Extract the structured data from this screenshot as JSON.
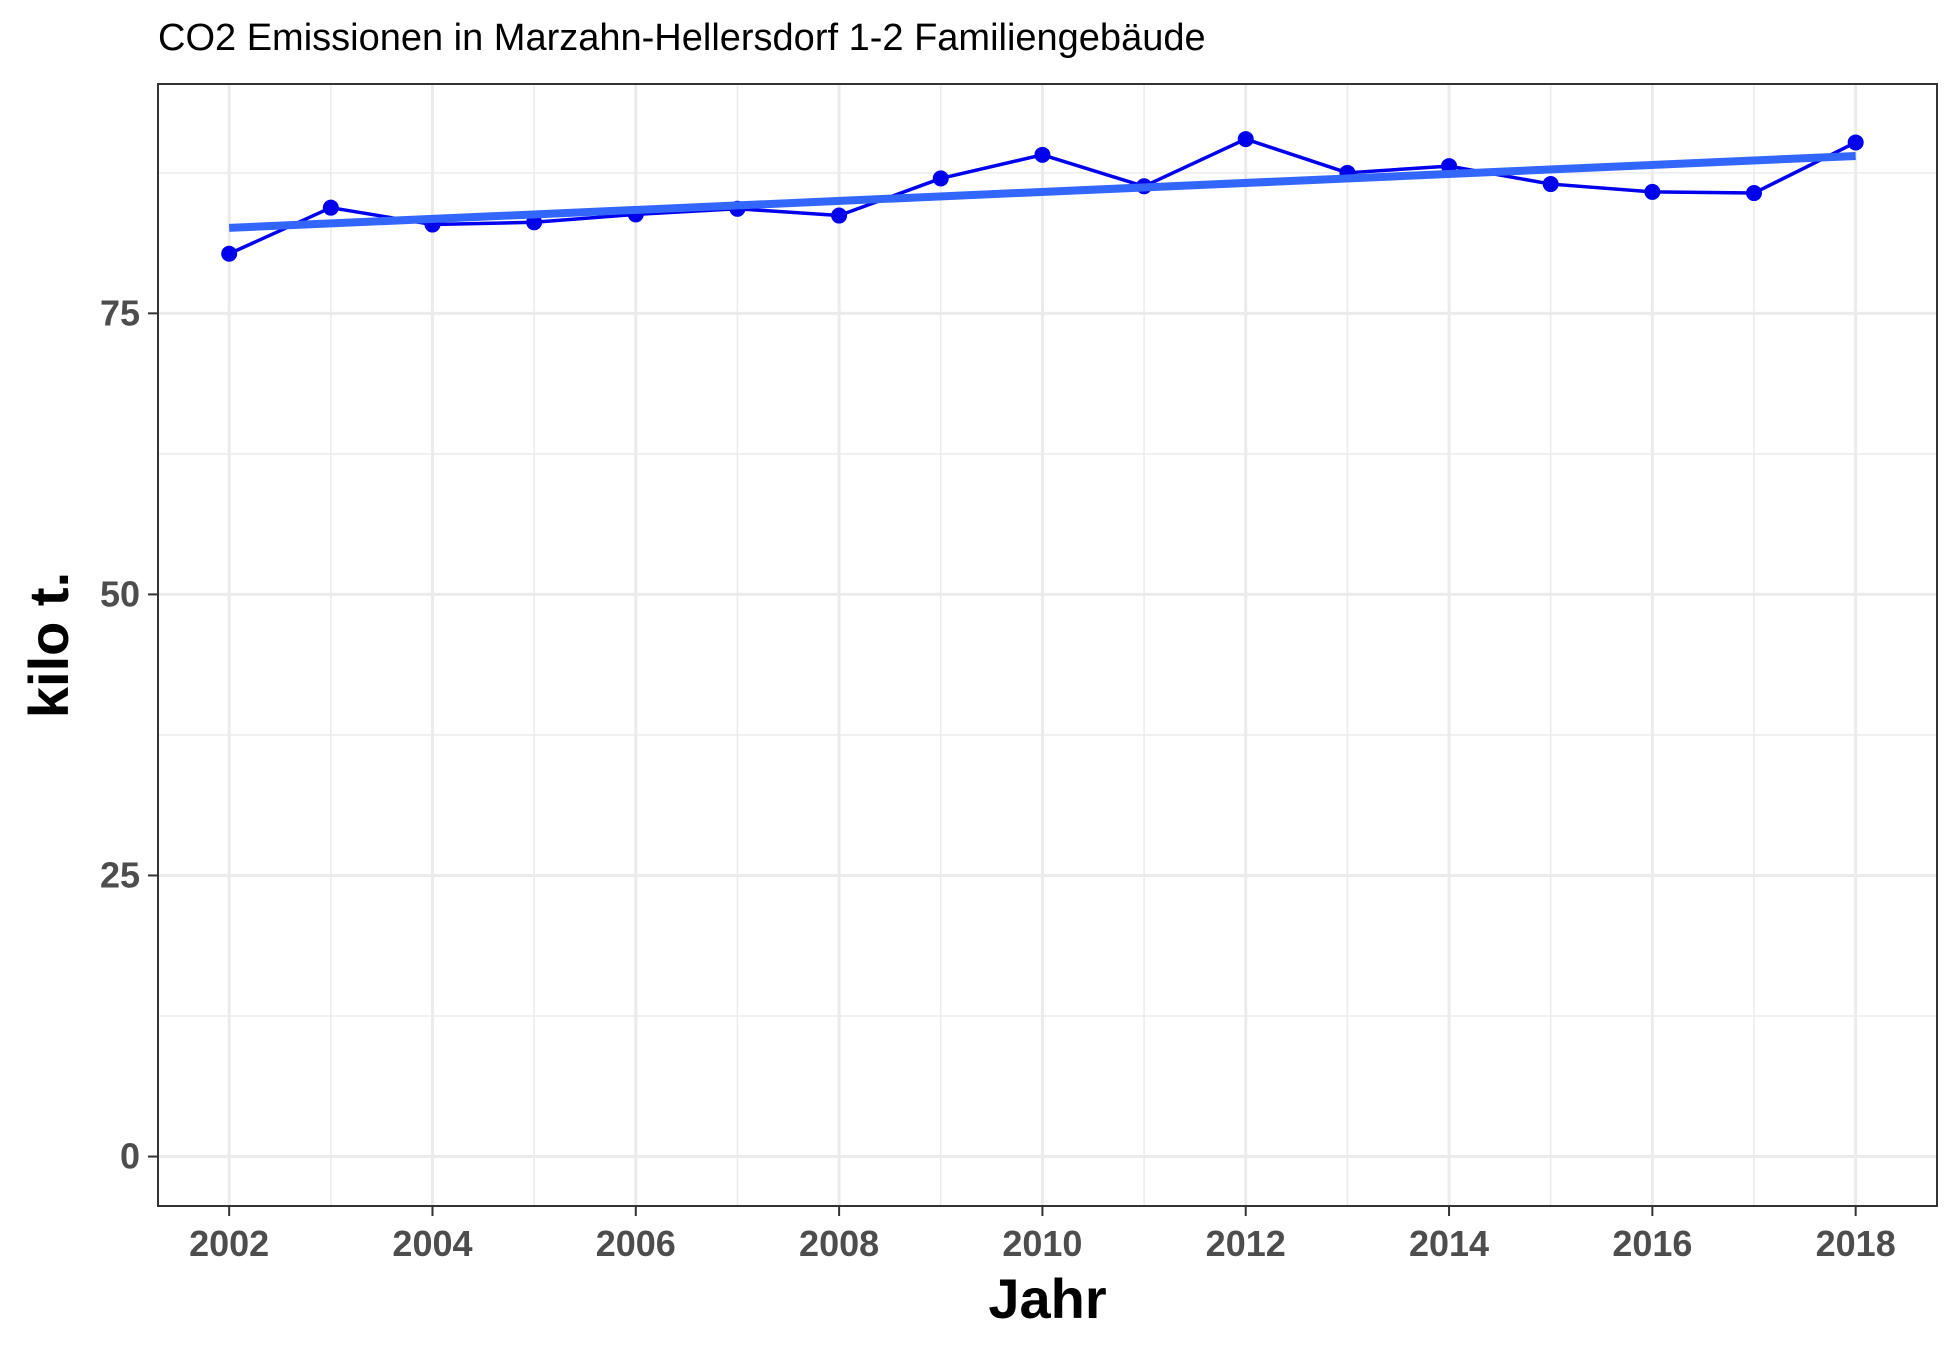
{
  "chart_data": {
    "type": "line",
    "title": "CO2 Emissionen in Marzahn-Hellersdorf 1-2 Familiengebäude",
    "xlabel": "Jahr",
    "ylabel": "kilo t.",
    "xlim": [
      2001.3,
      2018.8
    ],
    "ylim": [
      -4.4,
      95.4
    ],
    "x_ticks": [
      2002,
      2004,
      2006,
      2008,
      2010,
      2012,
      2014,
      2016,
      2018
    ],
    "y_ticks": [
      0,
      25,
      50,
      75
    ],
    "x_tick_labels": [
      "2002",
      "2004",
      "2006",
      "2008",
      "2010",
      "2012",
      "2014",
      "2016",
      "2018"
    ],
    "y_tick_labels": [
      "0",
      "25",
      "50",
      "75"
    ],
    "grid": true,
    "series": [
      {
        "color": "#0000ee",
        "x": [
          2002,
          2003,
          2004,
          2005,
          2006,
          2007,
          2008,
          2009,
          2010,
          2011,
          2012,
          2013,
          2014,
          2015,
          2016,
          2017,
          2018
        ],
        "y": [
          80.3,
          84.4,
          82.9,
          83.1,
          83.8,
          84.3,
          83.7,
          87.0,
          89.1,
          86.3,
          90.5,
          87.5,
          88.1,
          86.5,
          85.8,
          85.7,
          90.2
        ]
      }
    ],
    "trend_line": {
      "color": "#3366ff",
      "x": [
        2002,
        2018
      ],
      "y": [
        82.6,
        89.0
      ]
    }
  }
}
